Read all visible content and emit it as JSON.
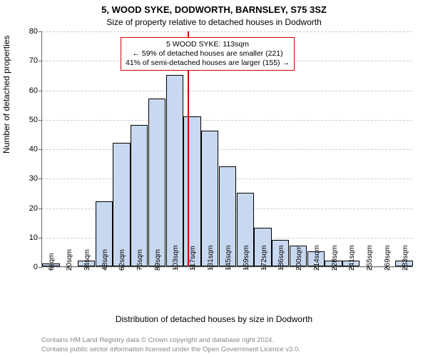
{
  "title_line1": "5, WOOD SYKE, DODWORTH, BARNSLEY, S75 3SZ",
  "title_line2": "Size of property relative to detached houses in Dodworth",
  "ylabel": "Number of detached properties",
  "xlabel": "Distribution of detached houses by size in Dodworth",
  "chart": {
    "type": "histogram",
    "ylim": [
      0,
      80
    ],
    "ytick_step": 10,
    "yticks": [
      0,
      10,
      20,
      30,
      40,
      50,
      60,
      70,
      80
    ],
    "categories": [
      "6sqm",
      "20sqm",
      "34sqm",
      "48sqm",
      "62sqm",
      "76sqm",
      "89sqm",
      "103sqm",
      "117sqm",
      "131sqm",
      "145sqm",
      "159sqm",
      "172sqm",
      "186sqm",
      "200sqm",
      "214sqm",
      "228sqm",
      "241sqm",
      "255sqm",
      "269sqm",
      "283sqm"
    ],
    "values": [
      1,
      0,
      2,
      22,
      42,
      48,
      57,
      65,
      51,
      46,
      34,
      25,
      13,
      9,
      7,
      5,
      2,
      2,
      0,
      0,
      2
    ],
    "bar_fill": "#c8d8f0",
    "bar_stroke": "#000000",
    "grid_color": "#cccccc",
    "axis_color": "#666666",
    "background_color": "#ffffff",
    "marker_color": "#cc0000",
    "marker_position": 113,
    "x_start": 6,
    "x_step": 13.85,
    "bar_width_ratio": 0.98
  },
  "annotation": {
    "line1": "5 WOOD SYKE: 113sqm",
    "line2": "← 59% of detached houses are smaller (221)",
    "line3": "41% of semi-detached houses are larger (155) →"
  },
  "footer": {
    "line1": "Contains HM Land Registry data © Crown copyright and database right 2024.",
    "line2": "Contains public sector information licensed under the Open Government Licence v3.0."
  },
  "fontsize": {
    "title": 13,
    "subtitle": 12,
    "axis_label": 12,
    "tick": 11,
    "xtick": 10,
    "annot": 10.5,
    "footer": 9.5
  }
}
